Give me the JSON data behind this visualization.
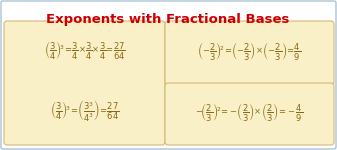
{
  "title": "Exponents with Fractional Bases",
  "title_color": "#CC0000",
  "title_fontsize": 9.5,
  "bg_color": "#FFFFFF",
  "box_color": "#FAF0C8",
  "box_edge_color": "#D4B87A",
  "outer_border_color": "#A8C4D4",
  "text_color": "#8B6914",
  "eq1": "$\\left(\\dfrac{3}{4}\\right)^{\\!3}\\!=\\!\\dfrac{3}{4}\\!\\times\\!\\dfrac{3}{4}\\!\\times\\!\\dfrac{3}{4}\\!=\\!\\dfrac{27}{64}$",
  "eq2": "$\\left(\\dfrac{3}{4}\\right)^{\\!3}\\!=\\!\\left(\\dfrac{3^3}{4^3}\\right)\\!=\\!\\dfrac{27}{64}$",
  "eq3": "$\\left(-\\dfrac{2}{3}\\right)^{\\!2}\\!=\\!\\left(-\\dfrac{2}{3}\\right)\\!\\times\\!\\left(-\\dfrac{2}{3}\\right)\\!=\\!\\dfrac{4}{9}$",
  "eq4": "$-\\!\\left(\\dfrac{2}{3}\\right)^{\\!2}\\!=\\!-\\!\\left(\\dfrac{2}{3}\\right)\\!\\times\\!\\left(\\dfrac{2}{3}\\right)\\!=\\!-\\dfrac{4}{9}$",
  "eq_fontsize": 6.0
}
